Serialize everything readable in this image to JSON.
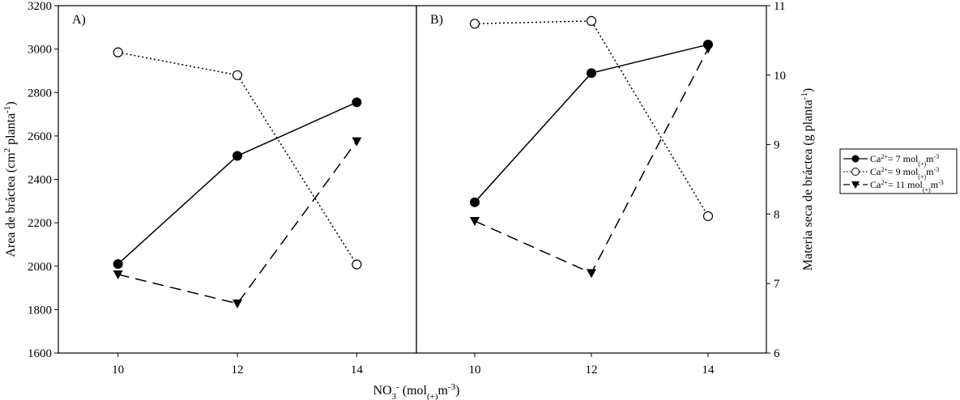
{
  "chart_data": [
    {
      "panel": "A)",
      "type": "line",
      "ylabel": "Area de bráctea (cm² planta⁻¹)",
      "ylim": [
        1600,
        3200
      ],
      "yticks": [
        1600,
        1800,
        2000,
        2200,
        2400,
        2600,
        2800,
        3000,
        3200
      ],
      "y_axis_side": "left",
      "xticks": [
        10,
        12,
        14
      ],
      "xlim": [
        9,
        15
      ],
      "x": [
        10,
        12,
        14
      ],
      "series": [
        {
          "name": "Ca²⁺= 7 mol(+)m⁻³",
          "marker": "filled-circle",
          "line": "solid",
          "values": [
            2010,
            2508,
            2755
          ]
        },
        {
          "name": "Ca²⁺= 9 mol(+)m⁻³",
          "marker": "open-circle",
          "line": "dotted",
          "values": [
            2985,
            2880,
            2008
          ]
        },
        {
          "name": "Ca²⁺= 11 mol(+)m⁻³",
          "marker": "filled-triangle-down",
          "line": "dashed",
          "values": [
            1962,
            1828,
            2575
          ]
        }
      ]
    },
    {
      "panel": "B)",
      "type": "line",
      "ylabel": "Materia seca de bráctea (g planta⁻¹)",
      "ylim": [
        6,
        11
      ],
      "yticks": [
        6,
        7,
        8,
        9,
        10,
        11
      ],
      "y_axis_side": "right",
      "xticks": [
        10,
        12,
        14
      ],
      "xlim": [
        9,
        15
      ],
      "x": [
        10,
        12,
        14
      ],
      "series": [
        {
          "name": "Ca²⁺= 7 mol(+)m⁻³",
          "marker": "filled-circle",
          "line": "solid",
          "values": [
            8.17,
            10.03,
            10.44
          ]
        },
        {
          "name": "Ca²⁺= 9 mol(+)m⁻³",
          "marker": "open-circle",
          "line": "dotted",
          "values": [
            10.74,
            10.78,
            7.97
          ]
        },
        {
          "name": "Ca²⁺= 11 mol(+)m⁻³",
          "marker": "filled-triangle-down",
          "line": "dashed",
          "values": [
            7.9,
            7.15,
            10.38
          ]
        }
      ]
    }
  ],
  "xlabel": "NO₃⁻ (mol(+)m⁻³)",
  "legend": {
    "placement": "right",
    "entries": [
      "Ca²⁺= 7 mol(+)m⁻³",
      "Ca²⁺= 9 mol(+)m⁻³",
      "Ca²⁺= 11 mol(+)m⁻³"
    ]
  }
}
